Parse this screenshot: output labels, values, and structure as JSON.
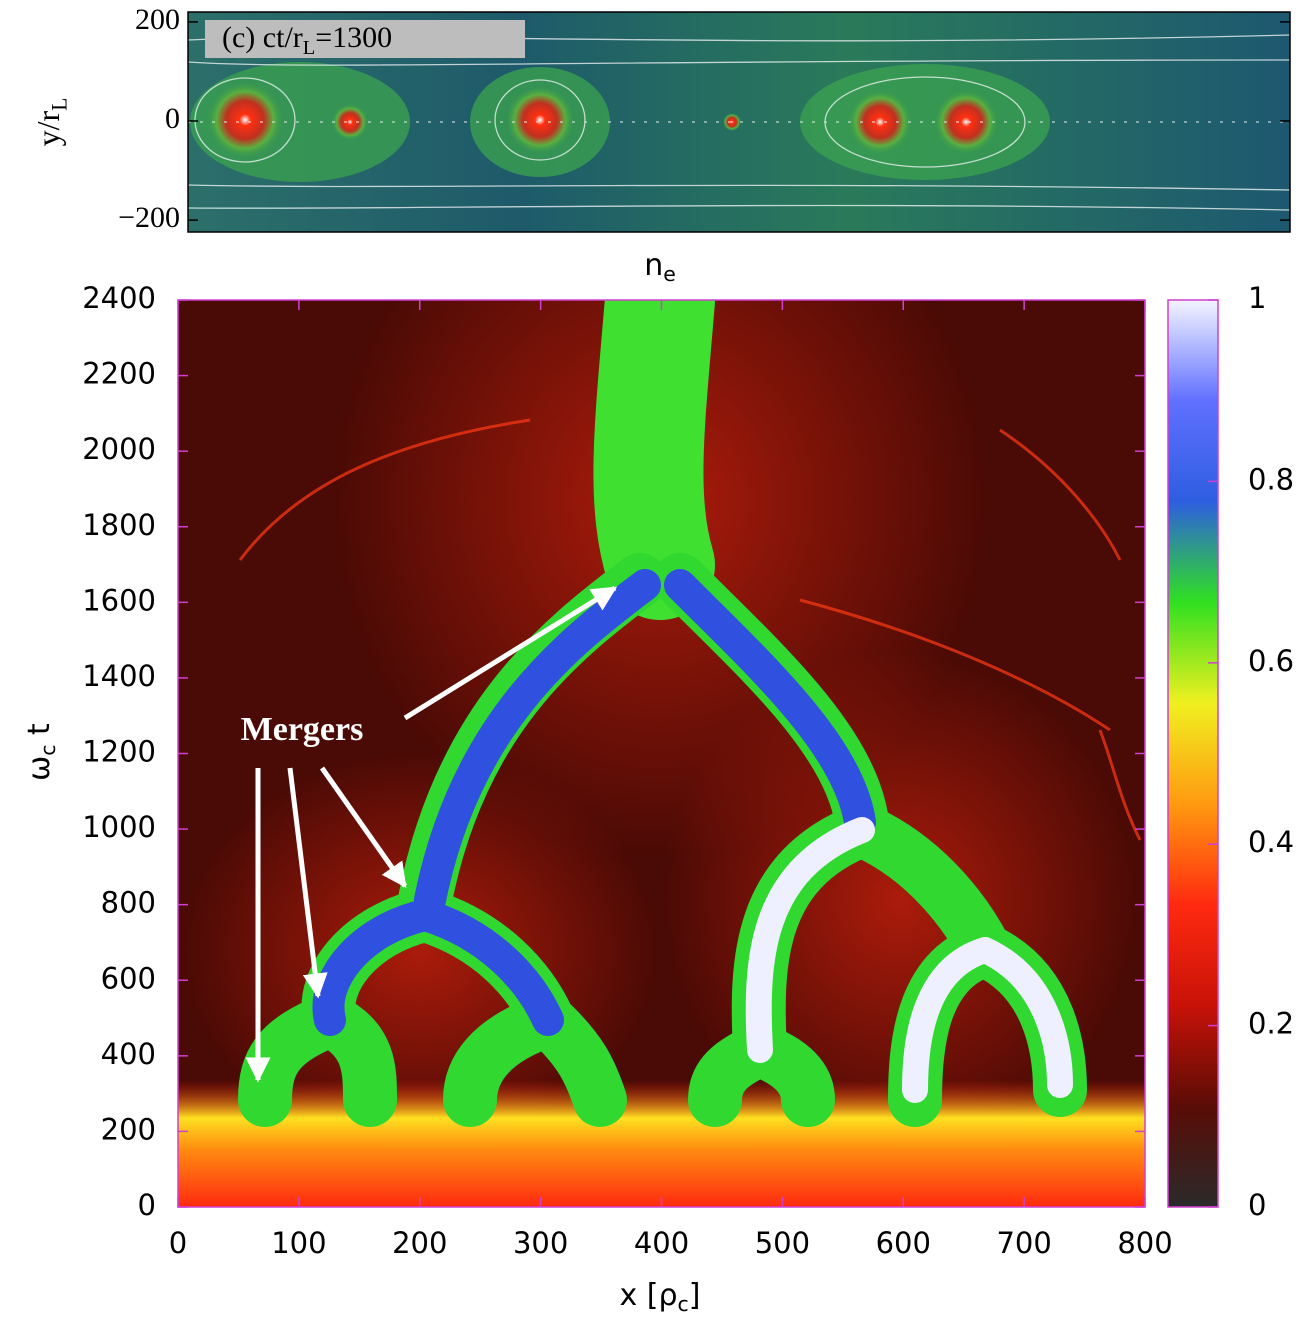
{
  "chart_data": [
    {
      "type": "heatmap",
      "annotation": [
        "(c) ct/r",
        "L",
        "=1300"
      ],
      "ylabel": [
        "y/r",
        "L"
      ],
      "ylim": [
        -224,
        220
      ],
      "yticks": [
        {
          "value": -200,
          "label": "−200"
        },
        0,
        200
      ]
    },
    {
      "type": "heatmap",
      "title": [
        "n",
        "e"
      ],
      "xlabel": [
        "x [ρ",
        "c",
        "]"
      ],
      "ylabel": [
        "ω",
        "c",
        " t"
      ],
      "xlim": [
        0,
        800
      ],
      "xticks": [
        0,
        100,
        200,
        300,
        400,
        500,
        600,
        700,
        800
      ],
      "ylim": [
        0,
        2400
      ],
      "yticks": [
        0,
        200,
        400,
        600,
        800,
        1000,
        1200,
        1400,
        1600,
        1800,
        2000,
        2200,
        2400
      ],
      "colorbar": {
        "lim": [
          0,
          1
        ],
        "ticks": [
          0,
          0.2,
          0.4,
          0.6,
          0.8,
          1
        ],
        "colors": [
          "#2a2a2a",
          "#5a0c06",
          "#c81208",
          "#ff2a10",
          "#ff9a10",
          "#f0f020",
          "#30e020",
          "#2e5ee0",
          "#6070ff",
          "#f4f4ff"
        ]
      },
      "annotation": "Mergers"
    }
  ]
}
